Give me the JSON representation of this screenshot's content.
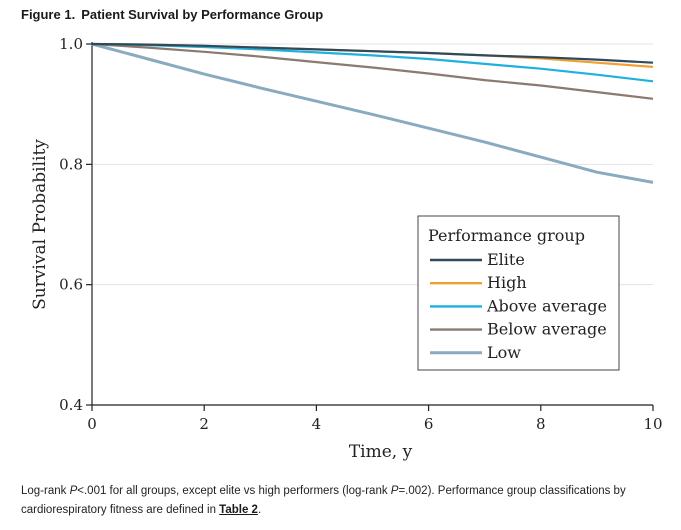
{
  "figure": {
    "label": "Figure 1.",
    "title": "Patient Survival by Performance Group"
  },
  "caption": {
    "part1": "Log-rank ",
    "p1": "P",
    "part2": "<.001 for all groups, except elite vs high performers (log-rank ",
    "p2": "P",
    "part3": "=.002). Performance group classifications by cardiorespiratory fitness are defined in ",
    "link": "Table 2",
    "part4": "."
  },
  "chart_data": {
    "type": "line",
    "xlabel": "Time, y",
    "ylabel": "Survival Probability",
    "xlim": [
      0,
      10
    ],
    "ylim": [
      0.4,
      1.0
    ],
    "xticks": [
      0,
      2,
      4,
      6,
      8,
      10
    ],
    "yticks": [
      0.4,
      0.6,
      0.8,
      1.0
    ],
    "ytick_labels": [
      "0.4",
      "0.6",
      "0.8",
      "1.0"
    ],
    "grid": "horizontal",
    "legend": {
      "title": "Performance group",
      "placement": "right"
    },
    "series": [
      {
        "name": "Elite",
        "color": "#2e4a5c",
        "x": [
          0,
          1,
          2,
          3,
          4,
          5,
          6,
          7,
          8,
          9,
          10
        ],
        "y": [
          1.0,
          0.999,
          0.997,
          0.994,
          0.991,
          0.988,
          0.985,
          0.981,
          0.978,
          0.974,
          0.969
        ]
      },
      {
        "name": "High",
        "color": "#f0a030",
        "x": [
          0,
          1,
          2,
          3,
          4,
          5,
          6,
          7,
          8,
          9,
          10
        ],
        "y": [
          1.0,
          0.999,
          0.997,
          0.994,
          0.991,
          0.988,
          0.985,
          0.981,
          0.976,
          0.969,
          0.962
        ]
      },
      {
        "name": "Above average",
        "color": "#1fb0e0",
        "x": [
          0,
          1,
          2,
          3,
          4,
          5,
          6,
          7,
          8,
          9,
          10
        ],
        "y": [
          1.0,
          0.998,
          0.995,
          0.991,
          0.986,
          0.981,
          0.975,
          0.967,
          0.959,
          0.949,
          0.938
        ]
      },
      {
        "name": "Below average",
        "color": "#8a7a70",
        "x": [
          0,
          1,
          2,
          3,
          4,
          5,
          6,
          7,
          8,
          9,
          10
        ],
        "y": [
          1.0,
          0.994,
          0.987,
          0.979,
          0.97,
          0.961,
          0.951,
          0.94,
          0.931,
          0.92,
          0.909
        ]
      },
      {
        "name": "Low",
        "color": "#8aaabf",
        "x": [
          0,
          1,
          2,
          3,
          4,
          5,
          6,
          7,
          8,
          9,
          10
        ],
        "y": [
          1.0,
          0.975,
          0.95,
          0.927,
          0.905,
          0.883,
          0.86,
          0.837,
          0.812,
          0.787,
          0.77
        ]
      }
    ]
  }
}
